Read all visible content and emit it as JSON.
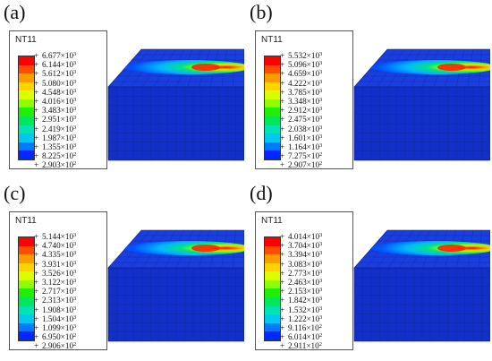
{
  "colormap": [
    "#ff0000",
    "#ff4d00",
    "#ff9900",
    "#ffd200",
    "#d8ff00",
    "#8cff00",
    "#22ef00",
    "#00e75a",
    "#00e3b3",
    "#00c8f0",
    "#0078ff",
    "#0028ff"
  ],
  "panels": [
    {
      "label": "(a)",
      "legend_title": "NT11",
      "legend_values": [
        {
          "mantissa": "6.677",
          "exponent": "3"
        },
        {
          "mantissa": "6.144",
          "exponent": "3"
        },
        {
          "mantissa": "5.612",
          "exponent": "3"
        },
        {
          "mantissa": "5.080",
          "exponent": "3"
        },
        {
          "mantissa": "4.548",
          "exponent": "3"
        },
        {
          "mantissa": "4.016",
          "exponent": "3"
        },
        {
          "mantissa": "3.483",
          "exponent": "3"
        },
        {
          "mantissa": "2.951",
          "exponent": "3"
        },
        {
          "mantissa": "2.419",
          "exponent": "3"
        },
        {
          "mantissa": "1.987",
          "exponent": "3"
        },
        {
          "mantissa": "1.355",
          "exponent": "3"
        },
        {
          "mantissa": "8.225",
          "exponent": "2"
        },
        {
          "mantissa": "2.903",
          "exponent": "2"
        }
      ]
    },
    {
      "label": "(b)",
      "legend_title": "NT11",
      "legend_values": [
        {
          "mantissa": "5.532",
          "exponent": "3"
        },
        {
          "mantissa": "5.096",
          "exponent": "3"
        },
        {
          "mantissa": "4.659",
          "exponent": "3"
        },
        {
          "mantissa": "4.222",
          "exponent": "3"
        },
        {
          "mantissa": "3.785",
          "exponent": "3"
        },
        {
          "mantissa": "3.348",
          "exponent": "3"
        },
        {
          "mantissa": "2.912",
          "exponent": "3"
        },
        {
          "mantissa": "2.475",
          "exponent": "3"
        },
        {
          "mantissa": "2.038",
          "exponent": "3"
        },
        {
          "mantissa": "1.601",
          "exponent": "3"
        },
        {
          "mantissa": "1.164",
          "exponent": "3"
        },
        {
          "mantissa": "7.275",
          "exponent": "2"
        },
        {
          "mantissa": "2.907",
          "exponent": "2"
        }
      ]
    },
    {
      "label": "(c)",
      "legend_title": "NT11",
      "legend_values": [
        {
          "mantissa": "5.144",
          "exponent": "3"
        },
        {
          "mantissa": "4.740",
          "exponent": "3"
        },
        {
          "mantissa": "4.335",
          "exponent": "3"
        },
        {
          "mantissa": "3.931",
          "exponent": "3"
        },
        {
          "mantissa": "3.526",
          "exponent": "3"
        },
        {
          "mantissa": "3.122",
          "exponent": "3"
        },
        {
          "mantissa": "2.717",
          "exponent": "3"
        },
        {
          "mantissa": "2.313",
          "exponent": "3"
        },
        {
          "mantissa": "1.908",
          "exponent": "3"
        },
        {
          "mantissa": "1.504",
          "exponent": "3"
        },
        {
          "mantissa": "1.099",
          "exponent": "3"
        },
        {
          "mantissa": "6.950",
          "exponent": "2"
        },
        {
          "mantissa": "2.906",
          "exponent": "2"
        }
      ]
    },
    {
      "label": "(d)",
      "legend_title": "NT11",
      "legend_values": [
        {
          "mantissa": "4.014",
          "exponent": "3"
        },
        {
          "mantissa": "3.704",
          "exponent": "3"
        },
        {
          "mantissa": "3.394",
          "exponent": "3"
        },
        {
          "mantissa": "3.083",
          "exponent": "3"
        },
        {
          "mantissa": "2.773",
          "exponent": "3"
        },
        {
          "mantissa": "2.463",
          "exponent": "3"
        },
        {
          "mantissa": "2.153",
          "exponent": "3"
        },
        {
          "mantissa": "1.842",
          "exponent": "3"
        },
        {
          "mantissa": "1.532",
          "exponent": "3"
        },
        {
          "mantissa": "1.222",
          "exponent": "3"
        },
        {
          "mantissa": "9.116",
          "exponent": "2"
        },
        {
          "mantissa": "6.014",
          "exponent": "2"
        },
        {
          "mantissa": "2.911",
          "exponent": "2"
        }
      ]
    }
  ]
}
